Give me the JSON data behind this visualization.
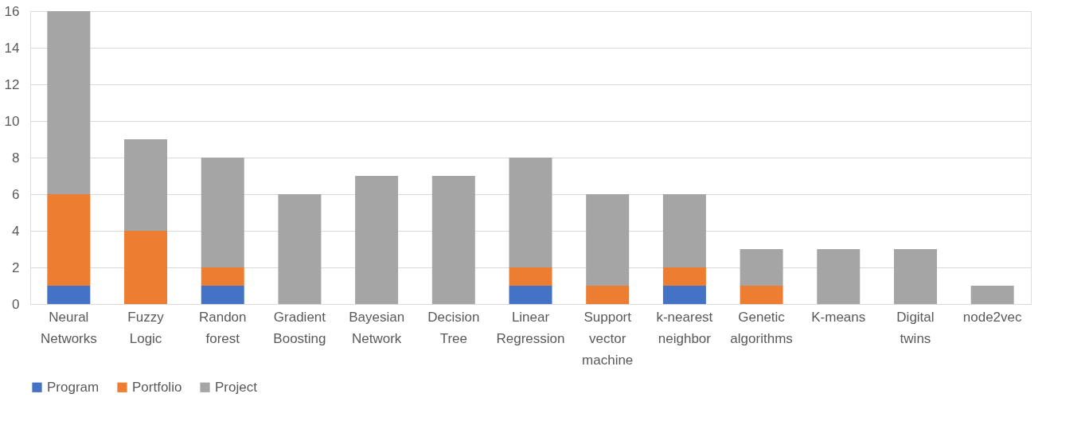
{
  "chart_data": {
    "type": "bar",
    "stacked": true,
    "categories": [
      "Neural Networks",
      "Fuzzy Logic",
      "Randon forest",
      "Gradient Boosting",
      "Bayesian Network",
      "Decision Tree",
      "Linear Regression",
      "Support vector machine",
      "k-nearest neighbor",
      "Genetic algorithms",
      "K-means",
      "Digital twins",
      "node2vec"
    ],
    "series": [
      {
        "name": "Program",
        "color": "#4472c4",
        "values": [
          1,
          0,
          1,
          0,
          0,
          0,
          1,
          0,
          1,
          0,
          0,
          0,
          0
        ]
      },
      {
        "name": "Portfolio",
        "color": "#ed7d31",
        "values": [
          5,
          4,
          1,
          0,
          0,
          0,
          1,
          1,
          1,
          1,
          0,
          0,
          0
        ]
      },
      {
        "name": "Project",
        "color": "#a5a5a5",
        "values": [
          10,
          5,
          6,
          6,
          7,
          7,
          6,
          5,
          4,
          2,
          3,
          3,
          1
        ]
      }
    ],
    "ylim": [
      0,
      16
    ],
    "yticks": [
      0,
      2,
      4,
      6,
      8,
      10,
      12,
      14,
      16
    ],
    "grid": "y",
    "legend": "bottom"
  }
}
